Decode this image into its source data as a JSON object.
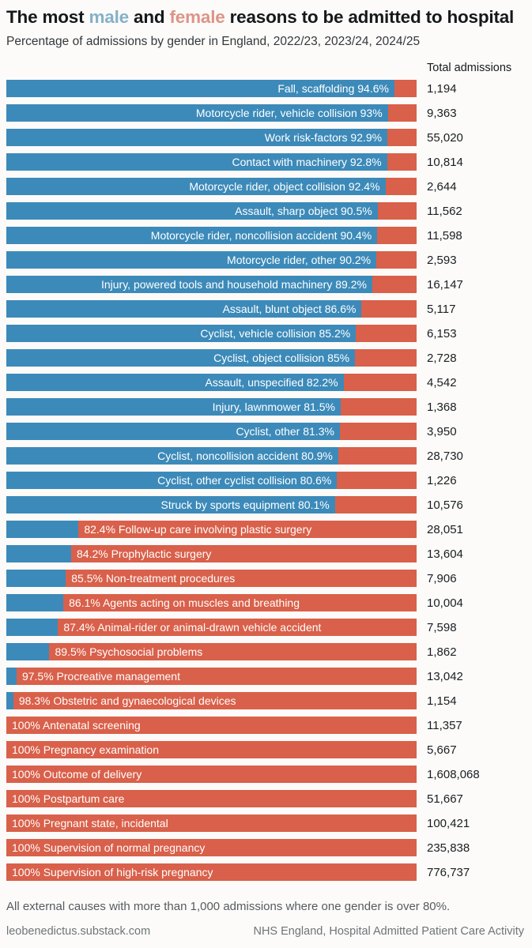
{
  "title": {
    "prefix": "The most ",
    "male_word": "male",
    "conjunction": " and ",
    "female_word": "female",
    "suffix": " reasons to be admitted to hospital"
  },
  "subtitle": "Percentage of admissions by gender in England, 2022/23, 2023/24, 2024/25",
  "column_header": "Total admissions",
  "footnote": "All external causes with more than 1,000 admissions where one gender is over 80%.",
  "source_left": "leobenedictus.substack.com",
  "source_right": "NHS England, Hospital Admitted Patient Care Activity",
  "colors": {
    "male_bar": "#3c8ab9",
    "female_bar": "#d9604a",
    "title_male_word": "#85b1c9",
    "title_female_word": "#dd9488"
  },
  "chart_data": {
    "type": "bar",
    "orientation": "horizontal",
    "stacked": true,
    "x_range_pct": [
      0,
      100
    ],
    "series": [
      "Male",
      "Female"
    ],
    "legend_position": "none",
    "grid": false,
    "rows": [
      {
        "label": "Fall, scaffolding",
        "side": "male",
        "pct": "94.6",
        "male_pct": 94.6,
        "female_pct": 5.4,
        "total": "1,194"
      },
      {
        "label": "Motorcycle rider, vehicle collision",
        "side": "male",
        "pct": "93",
        "male_pct": 93,
        "female_pct": 7,
        "total": "9,363"
      },
      {
        "label": "Work risk-factors",
        "side": "male",
        "pct": "92.9",
        "male_pct": 92.9,
        "female_pct": 7.1,
        "total": "55,020"
      },
      {
        "label": "Contact with machinery",
        "side": "male",
        "pct": "92.8",
        "male_pct": 92.8,
        "female_pct": 7.2,
        "total": "10,814"
      },
      {
        "label": "Motorcycle rider, object collision",
        "side": "male",
        "pct": "92.4",
        "male_pct": 92.4,
        "female_pct": 7.6,
        "total": "2,644"
      },
      {
        "label": "Assault, sharp object",
        "side": "male",
        "pct": "90.5",
        "male_pct": 90.5,
        "female_pct": 9.5,
        "total": "11,562"
      },
      {
        "label": "Motorcycle rider, noncollision accident",
        "side": "male",
        "pct": "90.4",
        "male_pct": 90.4,
        "female_pct": 9.6,
        "total": "11,598"
      },
      {
        "label": "Motorcycle rider, other",
        "side": "male",
        "pct": "90.2",
        "male_pct": 90.2,
        "female_pct": 9.8,
        "total": "2,593"
      },
      {
        "label": "Injury, powered tools and household machinery",
        "side": "male",
        "pct": "89.2",
        "male_pct": 89.2,
        "female_pct": 10.8,
        "total": "16,147"
      },
      {
        "label": "Assault, blunt object",
        "side": "male",
        "pct": "86.6",
        "male_pct": 86.6,
        "female_pct": 13.4,
        "total": "5,117"
      },
      {
        "label": "Cyclist, vehicle collision",
        "side": "male",
        "pct": "85.2",
        "male_pct": 85.2,
        "female_pct": 14.8,
        "total": "6,153"
      },
      {
        "label": "Cyclist, object collision",
        "side": "male",
        "pct": "85",
        "male_pct": 85,
        "female_pct": 15,
        "total": "2,728"
      },
      {
        "label": "Assault, unspecified",
        "side": "male",
        "pct": "82.2",
        "male_pct": 82.2,
        "female_pct": 17.8,
        "total": "4,542"
      },
      {
        "label": "Injury, lawnmower",
        "side": "male",
        "pct": "81.5",
        "male_pct": 81.5,
        "female_pct": 18.5,
        "total": "1,368"
      },
      {
        "label": "Cyclist, other",
        "side": "male",
        "pct": "81.3",
        "male_pct": 81.3,
        "female_pct": 18.7,
        "total": "3,950"
      },
      {
        "label": "Cyclist, noncollision accident",
        "side": "male",
        "pct": "80.9",
        "male_pct": 80.9,
        "female_pct": 19.1,
        "total": "28,730"
      },
      {
        "label": "Cyclist, other cyclist collision",
        "side": "male",
        "pct": "80.6",
        "male_pct": 80.6,
        "female_pct": 19.4,
        "total": "1,226"
      },
      {
        "label": "Struck by sports equipment",
        "side": "male",
        "pct": "80.1",
        "male_pct": 80.1,
        "female_pct": 19.9,
        "total": "10,576"
      },
      {
        "label": "Follow-up care involving plastic surgery",
        "side": "female",
        "pct": "82.4",
        "male_pct": 17.6,
        "female_pct": 82.4,
        "total": "28,051"
      },
      {
        "label": "Prophylactic surgery",
        "side": "female",
        "pct": "84.2",
        "male_pct": 15.8,
        "female_pct": 84.2,
        "total": "13,604"
      },
      {
        "label": "Non-treatment procedures",
        "side": "female",
        "pct": "85.5",
        "male_pct": 14.5,
        "female_pct": 85.5,
        "total": "7,906"
      },
      {
        "label": "Agents acting on muscles and breathing",
        "side": "female",
        "pct": "86.1",
        "male_pct": 13.9,
        "female_pct": 86.1,
        "total": "10,004"
      },
      {
        "label": "Animal-rider or animal-drawn vehicle accident",
        "side": "female",
        "pct": "87.4",
        "male_pct": 12.6,
        "female_pct": 87.4,
        "total": "7,598"
      },
      {
        "label": "Psychosocial problems",
        "side": "female",
        "pct": "89.5",
        "male_pct": 10.5,
        "female_pct": 89.5,
        "total": "1,862"
      },
      {
        "label": "Procreative management",
        "side": "female",
        "pct": "97.5",
        "male_pct": 2.5,
        "female_pct": 97.5,
        "total": "13,042"
      },
      {
        "label": "Obstetric and gynaecological devices",
        "side": "female",
        "pct": "98.3",
        "male_pct": 1.7,
        "female_pct": 98.3,
        "total": "1,154"
      },
      {
        "label": "Antenatal screening",
        "side": "female",
        "pct": "100",
        "male_pct": 0,
        "female_pct": 100,
        "total": "11,357"
      },
      {
        "label": "Pregnancy examination",
        "side": "female",
        "pct": "100",
        "male_pct": 0,
        "female_pct": 100,
        "total": "5,667"
      },
      {
        "label": "Outcome of delivery",
        "side": "female",
        "pct": "100",
        "male_pct": 0,
        "female_pct": 100,
        "total": "1,608,068"
      },
      {
        "label": "Postpartum care",
        "side": "female",
        "pct": "100",
        "male_pct": 0,
        "female_pct": 100,
        "total": "51,667"
      },
      {
        "label": "Pregnant state, incidental",
        "side": "female",
        "pct": "100",
        "male_pct": 0,
        "female_pct": 100,
        "total": "100,421"
      },
      {
        "label": "Supervision of normal pregnancy",
        "side": "female",
        "pct": "100",
        "male_pct": 0,
        "female_pct": 100,
        "total": "235,838"
      },
      {
        "label": "Supervision of high-risk pregnancy",
        "side": "female",
        "pct": "100",
        "male_pct": 0,
        "female_pct": 100,
        "total": "776,737"
      }
    ]
  }
}
